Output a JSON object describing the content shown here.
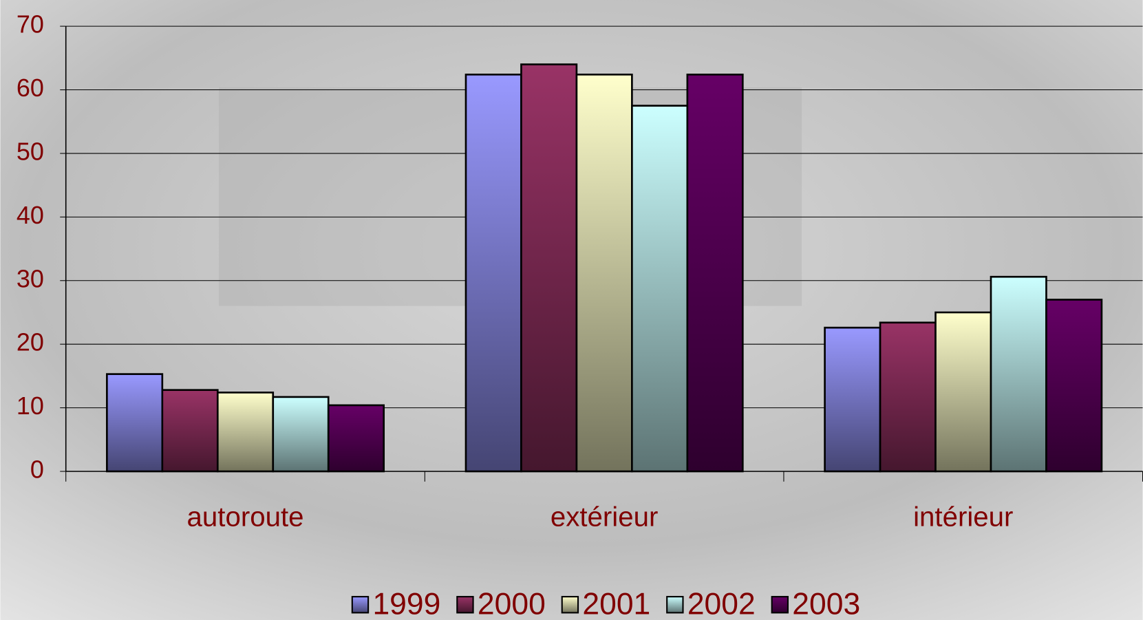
{
  "chart_data": {
    "type": "bar",
    "categories": [
      "autoroute",
      "extérieur",
      "intérieur"
    ],
    "series": [
      {
        "name": "1999",
        "color": "#9999ff",
        "values": [
          15.3,
          62.4,
          22.6
        ]
      },
      {
        "name": "2000",
        "color": "#993366",
        "values": [
          12.8,
          64.0,
          23.4
        ]
      },
      {
        "name": "2001",
        "color": "#ffffcc",
        "values": [
          12.4,
          62.4,
          25.0
        ]
      },
      {
        "name": "2002",
        "color": "#ccffff",
        "values": [
          11.7,
          57.5,
          30.6
        ]
      },
      {
        "name": "2003",
        "color": "#660066",
        "values": [
          10.4,
          62.4,
          27.0
        ]
      }
    ],
    "ylim": [
      0,
      70
    ],
    "yticks": [
      0,
      10,
      20,
      30,
      40,
      50,
      60,
      70
    ],
    "grid": true,
    "legend": "bottom"
  }
}
